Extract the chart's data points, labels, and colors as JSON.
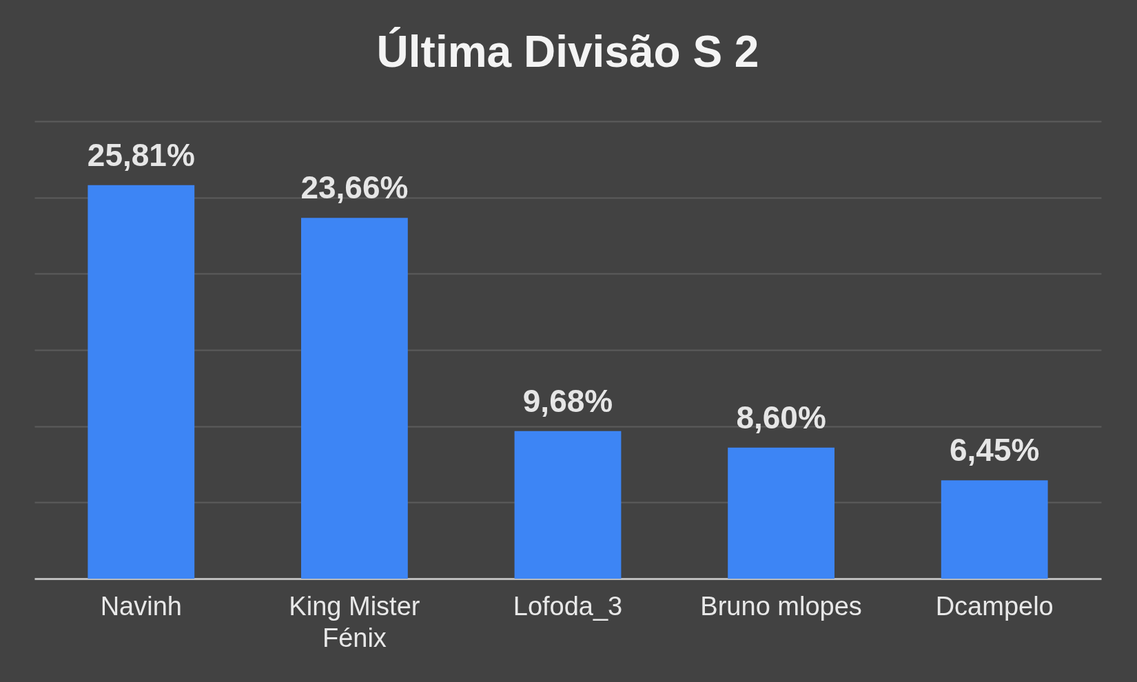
{
  "chart_data": {
    "type": "bar",
    "title": "Última Divisão S 2",
    "categories": [
      "Navinh",
      "King Mister Fénix",
      "Lofoda_3",
      "Bruno mlopes",
      "Dcampelo"
    ],
    "values": [
      25.81,
      23.66,
      9.68,
      8.6,
      6.45
    ],
    "value_labels": [
      "25,81%",
      "23,66%",
      "9,68%",
      "8,60%",
      "6,45%"
    ],
    "color": "#3d85f5",
    "ylim": [
      0,
      30
    ],
    "yticks": [
      {
        "value": 0,
        "label": null
      },
      {
        "value": 5,
        "label": null
      },
      {
        "value": 10,
        "label": null
      },
      {
        "value": 15,
        "label": null
      },
      {
        "value": 20,
        "label": null
      },
      {
        "value": 25,
        "label": null
      },
      {
        "value": 30,
        "label": null
      }
    ],
    "grid": "y",
    "tick_labels": "x"
  }
}
